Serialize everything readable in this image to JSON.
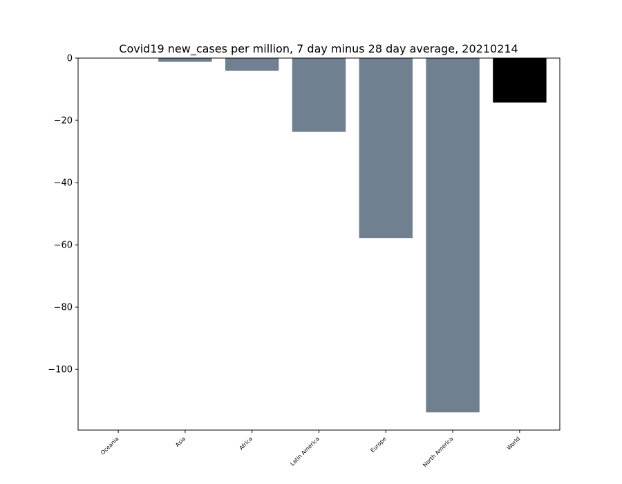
{
  "chart_data": {
    "type": "bar",
    "title": "Covid19 new_cases per million, 7 day minus 28 day average, 20210214",
    "xlabel": "",
    "ylabel": "",
    "categories": [
      "Oceania",
      "Asia",
      "Africa",
      "Latin America",
      "Europe",
      "North America",
      "World"
    ],
    "values": [
      0.0,
      -1.2,
      -4.1,
      -23.7,
      -57.8,
      -113.8,
      -14.3
    ],
    "bar_colors": [
      "#708090",
      "#708090",
      "#708090",
      "#708090",
      "#708090",
      "#708090",
      "#000000"
    ],
    "ylim": [
      -119.5,
      0
    ],
    "yticks": [
      0,
      -20,
      -40,
      -60,
      -80,
      -100
    ],
    "ytick_labels": [
      "0",
      "−20",
      "−40",
      "−60",
      "−80",
      "−100"
    ],
    "grid": false,
    "legend": false
  }
}
